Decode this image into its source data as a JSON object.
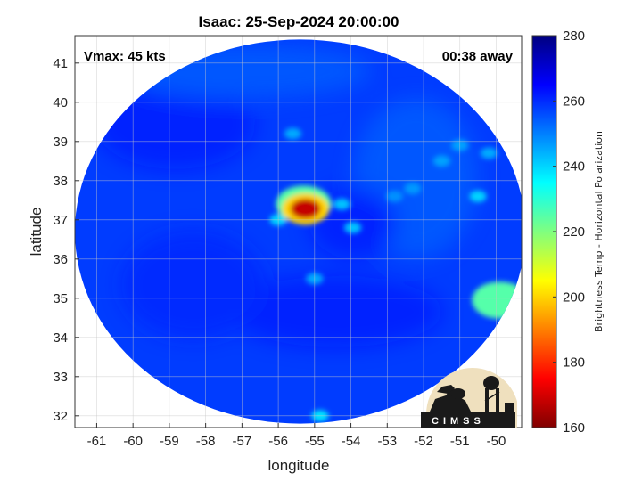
{
  "chart_data": {
    "type": "heatmap",
    "title": "Isaac: 25-Sep-2024 20:00:00",
    "xlabel": "longitude",
    "ylabel": "latitude",
    "xlim": [
      -61.6,
      -49.3
    ],
    "ylim": [
      31.7,
      41.7
    ],
    "xticks": [
      -61,
      -60,
      -59,
      -58,
      -57,
      -56,
      -55,
      -54,
      -53,
      -52,
      -51,
      -50
    ],
    "yticks": [
      32,
      33,
      34,
      35,
      36,
      37,
      38,
      39,
      40,
      41
    ],
    "grid": true,
    "annotations": {
      "vmax": "Vmax: 45 kts",
      "time_away": "00:38 away"
    },
    "colorbar": {
      "label": "Brightness Temp - Horizontal Polarization",
      "range": [
        160,
        280
      ],
      "ticks": [
        160,
        180,
        200,
        220,
        240,
        260,
        280
      ],
      "colormap": "jet"
    },
    "swath": {
      "center": [
        -55.4,
        36.7
      ],
      "lon_radius": 6.2,
      "lat_radius": 4.9
    },
    "background_level": 258,
    "features": [
      {
        "lon": -55.25,
        "lat": 37.28,
        "value": 168
      },
      {
        "lon": -55.25,
        "lat": 37.28,
        "value": 200
      },
      {
        "lon": -55.3,
        "lat": 37.4,
        "value": 225
      },
      {
        "lon": -56.0,
        "lat": 37.0,
        "value": 240
      },
      {
        "lon": -54.25,
        "lat": 37.4,
        "value": 242
      },
      {
        "lon": -53.95,
        "lat": 36.8,
        "value": 242
      },
      {
        "lon": -50.5,
        "lat": 37.6,
        "value": 240
      },
      {
        "lon": -49.9,
        "lat": 34.95,
        "value": 225
      },
      {
        "lon": -55.6,
        "lat": 39.2,
        "value": 245
      },
      {
        "lon": -51.5,
        "lat": 38.5,
        "value": 246
      },
      {
        "lon": -51.0,
        "lat": 38.9,
        "value": 246
      },
      {
        "lon": -55.0,
        "lat": 35.5,
        "value": 245
      },
      {
        "lon": -52.3,
        "lat": 37.8,
        "value": 247
      },
      {
        "lon": -54.85,
        "lat": 32.0,
        "value": 238
      },
      {
        "lon": -52.8,
        "lat": 37.6,
        "value": 248
      },
      {
        "lon": -50.2,
        "lat": 38.7,
        "value": 245
      }
    ]
  },
  "logo": {
    "text": "CIMSS"
  }
}
